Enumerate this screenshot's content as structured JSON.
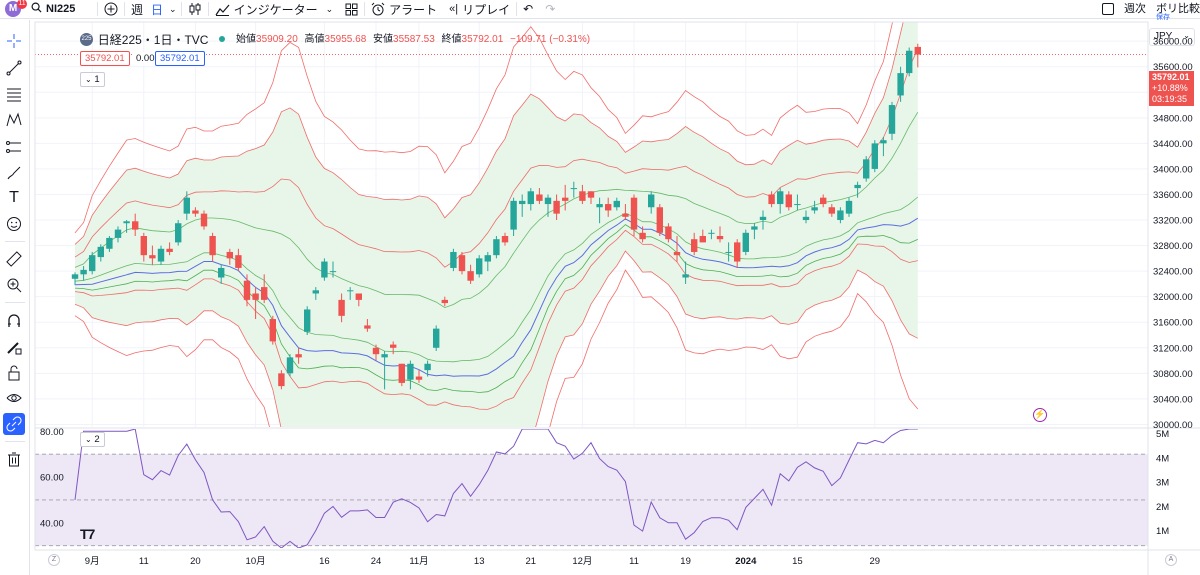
{
  "toolbar": {
    "symbol": "NI225",
    "badge_count": "11",
    "interval_week": "週",
    "interval_day": "日",
    "indicators_label": "インジケーター",
    "alert_label": "アラート",
    "replay_label": "リプレイ",
    "right_label": "週次",
    "compare_label": "ボリ比較",
    "compare_sub": "保存"
  },
  "legend": {
    "icon_text": "225",
    "title": "日経225・1日・TVC",
    "open_label": "始値",
    "open": "35909.20",
    "high_label": "高値",
    "high": "35955.68",
    "low_label": "安値",
    "low": "35587.53",
    "close_label": "終値",
    "close": "35792.01",
    "change": "−109.71 (−0.31%)",
    "box1": "35792.01",
    "box_mid": "0.00",
    "box2": "35792.01",
    "pane1": "1",
    "pane2": "2"
  },
  "price_tag": {
    "price": "35792.01",
    "change": "+10.88%",
    "countdown": "03:19:35"
  },
  "currency": "JPY",
  "colors": {
    "up": "#26a69a",
    "down": "#ef5350",
    "band_fill": "#e8f5e9",
    "rsi": "#7e57c2"
  },
  "chart_data": [
    {
      "type": "candlestick",
      "title": "日経225・1日・TVC",
      "y_ticks": [
        30000,
        30400,
        30800,
        31200,
        31600,
        32000,
        32400,
        32800,
        33200,
        33600,
        34000,
        34400,
        34800,
        35200,
        35600,
        36000
      ],
      "ylim": [
        29960,
        36300
      ],
      "x_ticks": [
        {
          "label": "9月",
          "i": 2
        },
        {
          "label": "11",
          "i": 8
        },
        {
          "label": "20",
          "i": 14
        },
        {
          "label": "10月",
          "i": 21
        },
        {
          "label": "16",
          "i": 29
        },
        {
          "label": "24",
          "i": 35
        },
        {
          "label": "11月",
          "i": 40
        },
        {
          "label": "13",
          "i": 47
        },
        {
          "label": "21",
          "i": 53
        },
        {
          "label": "12月",
          "i": 59
        },
        {
          "label": "11",
          "i": 65
        },
        {
          "label": "19",
          "i": 71
        },
        {
          "label": "2024",
          "i": 78
        },
        {
          "label": "15",
          "i": 84
        },
        {
          "label": "29",
          "i": 93
        }
      ],
      "candles": [
        [
          32280,
          32380,
          32180,
          32350
        ],
        [
          32350,
          32480,
          32250,
          32420
        ],
        [
          32400,
          32700,
          32350,
          32650
        ],
        [
          32620,
          32820,
          32550,
          32780
        ],
        [
          32750,
          32950,
          32700,
          32920
        ],
        [
          32920,
          33100,
          32850,
          33050
        ],
        [
          33150,
          33200,
          33000,
          33180
        ],
        [
          33180,
          33300,
          32950,
          33050
        ],
        [
          32950,
          33000,
          32550,
          32650
        ],
        [
          32650,
          32800,
          32500,
          32600
        ],
        [
          32550,
          32800,
          32500,
          32750
        ],
        [
          32750,
          32850,
          32650,
          32700
        ],
        [
          32850,
          33200,
          32800,
          33150
        ],
        [
          33300,
          33650,
          33200,
          33550
        ],
        [
          33350,
          33400,
          33250,
          33300
        ],
        [
          33300,
          33350,
          33050,
          33100
        ],
        [
          32950,
          33000,
          32550,
          32650
        ],
        [
          32300,
          32500,
          32200,
          32450
        ],
        [
          32700,
          32750,
          32500,
          32600
        ],
        [
          32650,
          32750,
          32400,
          32450
        ],
        [
          32250,
          32350,
          31850,
          31950
        ],
        [
          32050,
          32150,
          31650,
          31950
        ],
        [
          32150,
          32350,
          31900,
          31950
        ],
        [
          31650,
          31700,
          31250,
          31300
        ],
        [
          30800,
          30850,
          30550,
          30600
        ],
        [
          30800,
          31100,
          30750,
          31050
        ],
        [
          31100,
          31200,
          30950,
          31050
        ],
        [
          31450,
          31850,
          31400,
          31800
        ],
        [
          32050,
          32150,
          31950,
          32100
        ],
        [
          32300,
          32600,
          32250,
          32550
        ],
        [
          32400,
          32550,
          32300,
          32400
        ],
        [
          31950,
          32050,
          31600,
          31700
        ],
        [
          32100,
          32150,
          31950,
          32100
        ],
        [
          32050,
          32050,
          31850,
          31950
        ],
        [
          31550,
          31650,
          31450,
          31500
        ],
        [
          31200,
          31250,
          31000,
          31100
        ],
        [
          31050,
          31150,
          30550,
          31100
        ],
        [
          31250,
          31300,
          31100,
          31200
        ],
        [
          30950,
          30950,
          30600,
          30650
        ],
        [
          30700,
          31000,
          30550,
          30950
        ],
        [
          30750,
          30850,
          30650,
          30700
        ],
        [
          30850,
          31000,
          30750,
          30950
        ],
        [
          31200,
          31550,
          31150,
          31500
        ],
        [
          31950,
          32000,
          31850,
          31900
        ],
        [
          32450,
          32750,
          32400,
          32700
        ],
        [
          32650,
          32700,
          32350,
          32400
        ],
        [
          32400,
          32500,
          32200,
          32250
        ],
        [
          32350,
          32650,
          32300,
          32600
        ],
        [
          32550,
          32700,
          32400,
          32650
        ],
        [
          32650,
          32950,
          32600,
          32900
        ],
        [
          32950,
          33000,
          32800,
          32850
        ],
        [
          33050,
          33550,
          32950,
          33500
        ],
        [
          33450,
          33600,
          33250,
          33500
        ],
        [
          33450,
          33700,
          33350,
          33650
        ],
        [
          33600,
          33700,
          33450,
          33500
        ],
        [
          33450,
          33600,
          33250,
          33550
        ],
        [
          33500,
          33600,
          33200,
          33300
        ],
        [
          33550,
          33750,
          33350,
          33500
        ],
        [
          33700,
          33800,
          33550,
          33700
        ],
        [
          33650,
          33750,
          33450,
          33500
        ],
        [
          33650,
          33650,
          33450,
          33550
        ],
        [
          33400,
          33550,
          33150,
          33450
        ],
        [
          33450,
          33550,
          33250,
          33350
        ],
        [
          33400,
          33550,
          33350,
          33500
        ],
        [
          33300,
          33450,
          33200,
          33250
        ],
        [
          33550,
          33600,
          32950,
          33050
        ],
        [
          33000,
          33100,
          32850,
          32900
        ],
        [
          33400,
          33650,
          33300,
          33600
        ],
        [
          33400,
          33450,
          32950,
          33000
        ],
        [
          33100,
          33150,
          32850,
          32900
        ],
        [
          32700,
          32950,
          32550,
          32650
        ],
        [
          32300,
          32550,
          32200,
          32350
        ],
        [
          32900,
          33000,
          32650,
          32700
        ],
        [
          32950,
          33050,
          32850,
          32850
        ],
        [
          33000,
          33050,
          32900,
          33000
        ],
        [
          32950,
          33100,
          32850,
          32900
        ],
        [
          32700,
          32850,
          32550,
          32700
        ],
        [
          32850,
          32900,
          32450,
          32550
        ],
        [
          32700,
          33050,
          32650,
          33000
        ],
        [
          33050,
          33150,
          32900,
          33100
        ],
        [
          33200,
          33350,
          33050,
          33250
        ],
        [
          33600,
          33650,
          33400,
          33450
        ],
        [
          33450,
          33700,
          33300,
          33650
        ],
        [
          33600,
          33650,
          33350,
          33400
        ],
        [
          33450,
          33600,
          33350,
          33450
        ],
        [
          33200,
          33350,
          33150,
          33250
        ],
        [
          33350,
          33500,
          33300,
          33400
        ],
        [
          33550,
          33600,
          33400,
          33450
        ],
        [
          33400,
          33450,
          33250,
          33300
        ],
        [
          33200,
          33400,
          33150,
          33350
        ],
        [
          33300,
          33550,
          33250,
          33500
        ],
        [
          33700,
          33800,
          33550,
          33750
        ],
        [
          33850,
          34200,
          33800,
          34150
        ],
        [
          34000,
          34450,
          33950,
          34400
        ],
        [
          34400,
          34500,
          34200,
          34450
        ],
        [
          34550,
          35050,
          34450,
          35000
        ],
        [
          35150,
          35600,
          35050,
          35500
        ],
        [
          35500,
          35900,
          35450,
          35850
        ],
        [
          35910,
          35960,
          35590,
          35790
        ]
      ]
    },
    {
      "type": "line",
      "title": "RSI",
      "y_ticks": [
        40,
        60,
        80
      ],
      "ylim": [
        29,
        81
      ],
      "bands": [
        70,
        50,
        30
      ],
      "volume_ticks": [
        "1M",
        "2M",
        "3M",
        "4M",
        "5M"
      ]
    }
  ]
}
